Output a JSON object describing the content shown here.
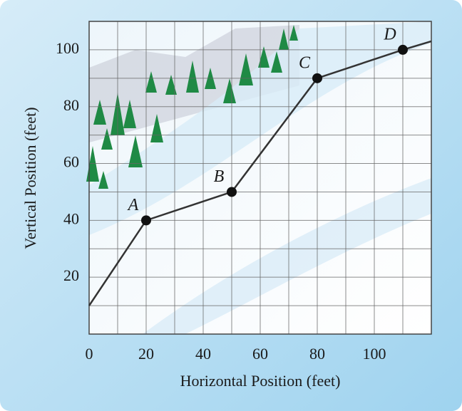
{
  "chart_data": {
    "type": "line",
    "x_label": "Horizontal Position (feet)",
    "y_label": "Vertical Position (feet)",
    "x": [
      0,
      20,
      50,
      80,
      110,
      120
    ],
    "series": [
      {
        "values": [
          10,
          40,
          50,
          90,
          100,
          103
        ],
        "color": "#333333",
        "point_labels": [
          null,
          "A",
          "B",
          "C",
          "D",
          null
        ]
      }
    ],
    "xlim": [
      0,
      120
    ],
    "ylim": [
      0,
      110
    ],
    "xticks": [
      0,
      20,
      40,
      60,
      80,
      100
    ],
    "yticks": [
      20,
      40,
      60,
      80,
      100
    ],
    "grid": true,
    "xgrid": [
      0,
      10,
      20,
      30,
      40,
      50,
      60,
      70,
      80,
      90,
      100,
      110,
      120
    ],
    "ygrid": [
      0,
      10,
      20,
      30,
      40,
      50,
      60,
      70,
      80,
      90,
      100,
      110
    ]
  }
}
